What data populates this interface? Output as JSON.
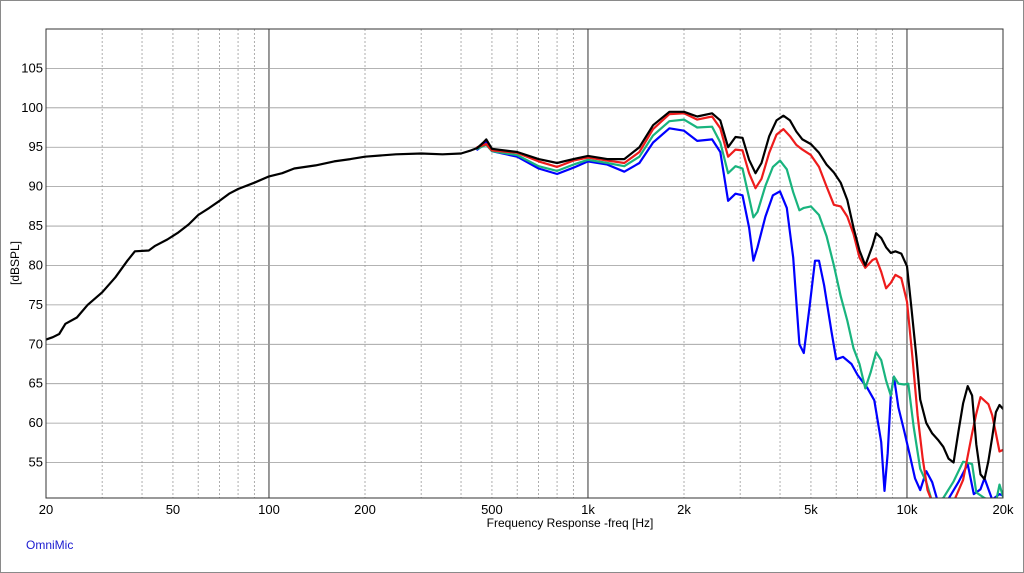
{
  "brand": "OmniMic",
  "chart_data": {
    "type": "line",
    "xlabel": "Frequency Response -freq [Hz]",
    "ylabel": "[dBSPL]",
    "x_scale": "log",
    "xlim": [
      20,
      20000
    ],
    "ylim": [
      50.5,
      110
    ],
    "grid": true,
    "x_ticks": [
      {
        "v": 20,
        "label": "20"
      },
      {
        "v": 50,
        "label": "50"
      },
      {
        "v": 100,
        "label": "100"
      },
      {
        "v": 200,
        "label": "200"
      },
      {
        "v": 500,
        "label": "500"
      },
      {
        "v": 1000,
        "label": "1k"
      },
      {
        "v": 2000,
        "label": "2k"
      },
      {
        "v": 5000,
        "label": "5k"
      },
      {
        "v": 10000,
        "label": "10k"
      },
      {
        "v": 20000,
        "label": "20k"
      }
    ],
    "y_ticks": [
      {
        "v": 55,
        "label": "55"
      },
      {
        "v": 60,
        "label": "60"
      },
      {
        "v": 65,
        "label": "65"
      },
      {
        "v": 70,
        "label": "70"
      },
      {
        "v": 75,
        "label": "75"
      },
      {
        "v": 80,
        "label": "80"
      },
      {
        "v": 85,
        "label": "85"
      },
      {
        "v": 90,
        "label": "90"
      },
      {
        "v": 95,
        "label": "95"
      },
      {
        "v": 100,
        "label": "100"
      },
      {
        "v": 105,
        "label": "105"
      }
    ],
    "series": [
      {
        "color": "#0000ff",
        "points": [
          [
            450,
            94.7
          ],
          [
            480,
            95.6
          ],
          [
            500,
            94.5
          ],
          [
            600,
            93.8
          ],
          [
            700,
            92.3
          ],
          [
            800,
            91.6
          ],
          [
            900,
            92.4
          ],
          [
            1000,
            93.2
          ],
          [
            1150,
            92.8
          ],
          [
            1300,
            91.9
          ],
          [
            1450,
            93.0
          ],
          [
            1600,
            95.6
          ],
          [
            1800,
            97.4
          ],
          [
            2000,
            97.1
          ],
          [
            2200,
            95.8
          ],
          [
            2450,
            96.0
          ],
          [
            2600,
            94.4
          ],
          [
            2750,
            88.2
          ],
          [
            2900,
            89.1
          ],
          [
            3050,
            88.9
          ],
          [
            3200,
            84.8
          ],
          [
            3300,
            80.6
          ],
          [
            3400,
            82.3
          ],
          [
            3600,
            86.2
          ],
          [
            3800,
            88.9
          ],
          [
            4000,
            89.4
          ],
          [
            4200,
            87.3
          ],
          [
            4400,
            81.0
          ],
          [
            4600,
            70.0
          ],
          [
            4750,
            68.9
          ],
          [
            4950,
            74.8
          ],
          [
            5150,
            80.6
          ],
          [
            5300,
            80.6
          ],
          [
            5500,
            77.5
          ],
          [
            5800,
            71.6
          ],
          [
            6000,
            68.1
          ],
          [
            6300,
            68.4
          ],
          [
            6700,
            67.5
          ],
          [
            7000,
            66.1
          ],
          [
            7500,
            64.5
          ],
          [
            7900,
            62.9
          ],
          [
            8300,
            57.6
          ],
          [
            8500,
            51.4
          ],
          [
            8700,
            56.2
          ],
          [
            8900,
            63.5
          ],
          [
            9100,
            65.9
          ],
          [
            9400,
            62.0
          ],
          [
            9800,
            59.0
          ],
          [
            10200,
            56.0
          ],
          [
            10600,
            53.0
          ],
          [
            11000,
            51.5
          ],
          [
            11500,
            53.9
          ],
          [
            12000,
            52.5
          ],
          [
            12500,
            50.0
          ],
          [
            13500,
            50.4
          ],
          [
            14500,
            52.5
          ],
          [
            15500,
            54.8
          ],
          [
            16200,
            51.0
          ],
          [
            17000,
            51.6
          ],
          [
            17500,
            53.0
          ],
          [
            18500,
            50.3
          ],
          [
            19500,
            51.0
          ],
          [
            20000,
            50.8
          ]
        ]
      },
      {
        "color": "#19b47e",
        "points": [
          [
            450,
            94.8
          ],
          [
            480,
            95.3
          ],
          [
            500,
            94.5
          ],
          [
            600,
            94.0
          ],
          [
            700,
            92.6
          ],
          [
            800,
            92.0
          ],
          [
            900,
            92.8
          ],
          [
            1000,
            93.4
          ],
          [
            1150,
            93.0
          ],
          [
            1300,
            92.6
          ],
          [
            1450,
            93.8
          ],
          [
            1600,
            96.5
          ],
          [
            1800,
            98.3
          ],
          [
            2000,
            98.5
          ],
          [
            2200,
            97.5
          ],
          [
            2450,
            97.6
          ],
          [
            2600,
            95.6
          ],
          [
            2750,
            91.7
          ],
          [
            2900,
            92.6
          ],
          [
            3050,
            92.3
          ],
          [
            3200,
            88.6
          ],
          [
            3300,
            86.1
          ],
          [
            3400,
            86.8
          ],
          [
            3600,
            90.1
          ],
          [
            3800,
            92.5
          ],
          [
            4000,
            93.3
          ],
          [
            4200,
            92.2
          ],
          [
            4400,
            89.3
          ],
          [
            4600,
            87.0
          ],
          [
            4750,
            87.3
          ],
          [
            5000,
            87.5
          ],
          [
            5300,
            86.4
          ],
          [
            5600,
            83.7
          ],
          [
            5900,
            80.0
          ],
          [
            6200,
            76.1
          ],
          [
            6500,
            73.0
          ],
          [
            6800,
            69.5
          ],
          [
            7100,
            67.5
          ],
          [
            7400,
            64.4
          ],
          [
            7700,
            66.5
          ],
          [
            8000,
            69.0
          ],
          [
            8300,
            68.0
          ],
          [
            8600,
            65.4
          ],
          [
            8900,
            63.5
          ],
          [
            9100,
            65.9
          ],
          [
            9400,
            65.0
          ],
          [
            9800,
            64.9
          ],
          [
            10100,
            65.0
          ],
          [
            10500,
            59.5
          ],
          [
            11000,
            54.2
          ],
          [
            11500,
            52.5
          ],
          [
            12000,
            50.0
          ],
          [
            13000,
            50.5
          ],
          [
            14000,
            52.6
          ],
          [
            15000,
            55.1
          ],
          [
            16000,
            54.8
          ],
          [
            16500,
            51.2
          ],
          [
            17500,
            50.5
          ],
          [
            19000,
            50.0
          ],
          [
            19500,
            52.2
          ],
          [
            20000,
            50.7
          ]
        ]
      },
      {
        "color": "#ee1c1c",
        "points": [
          [
            450,
            95.0
          ],
          [
            480,
            95.4
          ],
          [
            500,
            94.6
          ],
          [
            600,
            94.3
          ],
          [
            700,
            93.2
          ],
          [
            800,
            92.5
          ],
          [
            900,
            93.3
          ],
          [
            1000,
            93.7
          ],
          [
            1150,
            93.3
          ],
          [
            1300,
            93.0
          ],
          [
            1450,
            94.4
          ],
          [
            1600,
            97.3
          ],
          [
            1800,
            99.2
          ],
          [
            2000,
            99.3
          ],
          [
            2200,
            98.5
          ],
          [
            2450,
            98.9
          ],
          [
            2600,
            97.4
          ],
          [
            2750,
            93.8
          ],
          [
            2900,
            94.7
          ],
          [
            3050,
            94.6
          ],
          [
            3200,
            91.7
          ],
          [
            3350,
            89.8
          ],
          [
            3500,
            91.0
          ],
          [
            3700,
            94.3
          ],
          [
            3900,
            96.6
          ],
          [
            4100,
            97.3
          ],
          [
            4300,
            96.4
          ],
          [
            4500,
            95.3
          ],
          [
            4700,
            94.7
          ],
          [
            5000,
            94.0
          ],
          [
            5300,
            92.5
          ],
          [
            5600,
            90.0
          ],
          [
            5900,
            87.7
          ],
          [
            6200,
            87.5
          ],
          [
            6500,
            86.2
          ],
          [
            6800,
            84.0
          ],
          [
            7100,
            81.0
          ],
          [
            7400,
            79.7
          ],
          [
            7800,
            80.7
          ],
          [
            8000,
            80.9
          ],
          [
            8300,
            79.2
          ],
          [
            8600,
            77.1
          ],
          [
            8900,
            77.8
          ],
          [
            9200,
            78.8
          ],
          [
            9600,
            78.4
          ],
          [
            10000,
            75.4
          ],
          [
            10400,
            68.4
          ],
          [
            10800,
            61.0
          ],
          [
            11200,
            55.5
          ],
          [
            11600,
            51.5
          ],
          [
            12000,
            50.0
          ],
          [
            13000,
            49.8
          ],
          [
            14000,
            50.0
          ],
          [
            15000,
            52.8
          ],
          [
            16000,
            58.7
          ],
          [
            16500,
            61.2
          ],
          [
            17000,
            63.3
          ],
          [
            18000,
            62.4
          ],
          [
            18500,
            61.0
          ],
          [
            19000,
            58.7
          ],
          [
            19500,
            56.4
          ],
          [
            20000,
            56.6
          ]
        ]
      },
      {
        "color": "#000000",
        "points": [
          [
            20,
            70.6
          ],
          [
            21,
            70.9
          ],
          [
            22,
            71.3
          ],
          [
            23,
            72.6
          ],
          [
            25,
            73.4
          ],
          [
            27,
            75.0
          ],
          [
            30,
            76.6
          ],
          [
            33,
            78.5
          ],
          [
            36,
            80.6
          ],
          [
            38,
            81.8
          ],
          [
            42,
            81.9
          ],
          [
            44,
            82.5
          ],
          [
            48,
            83.3
          ],
          [
            52,
            84.2
          ],
          [
            56,
            85.2
          ],
          [
            60,
            86.4
          ],
          [
            65,
            87.3
          ],
          [
            70,
            88.2
          ],
          [
            75,
            89.1
          ],
          [
            80,
            89.7
          ],
          [
            90,
            90.5
          ],
          [
            100,
            91.3
          ],
          [
            110,
            91.7
          ],
          [
            120,
            92.3
          ],
          [
            140,
            92.7
          ],
          [
            160,
            93.2
          ],
          [
            180,
            93.5
          ],
          [
            200,
            93.8
          ],
          [
            250,
            94.1
          ],
          [
            300,
            94.2
          ],
          [
            350,
            94.1
          ],
          [
            400,
            94.2
          ],
          [
            430,
            94.6
          ],
          [
            450,
            94.9
          ],
          [
            470,
            95.6
          ],
          [
            480,
            96.0
          ],
          [
            500,
            94.8
          ],
          [
            600,
            94.4
          ],
          [
            700,
            93.5
          ],
          [
            800,
            93.0
          ],
          [
            900,
            93.5
          ],
          [
            1000,
            93.9
          ],
          [
            1150,
            93.5
          ],
          [
            1300,
            93.5
          ],
          [
            1450,
            95.0
          ],
          [
            1600,
            97.8
          ],
          [
            1800,
            99.5
          ],
          [
            2000,
            99.5
          ],
          [
            2200,
            98.9
          ],
          [
            2450,
            99.3
          ],
          [
            2600,
            98.4
          ],
          [
            2750,
            95.0
          ],
          [
            2900,
            96.3
          ],
          [
            3050,
            96.2
          ],
          [
            3200,
            93.4
          ],
          [
            3350,
            91.7
          ],
          [
            3500,
            93.0
          ],
          [
            3700,
            96.4
          ],
          [
            3900,
            98.4
          ],
          [
            4100,
            99.0
          ],
          [
            4300,
            98.4
          ],
          [
            4500,
            97.0
          ],
          [
            4700,
            96.0
          ],
          [
            5000,
            95.4
          ],
          [
            5300,
            94.3
          ],
          [
            5600,
            92.8
          ],
          [
            5900,
            91.8
          ],
          [
            6200,
            90.5
          ],
          [
            6500,
            88.3
          ],
          [
            6800,
            84.8
          ],
          [
            7100,
            81.9
          ],
          [
            7400,
            80.0
          ],
          [
            7800,
            82.5
          ],
          [
            8000,
            84.1
          ],
          [
            8300,
            83.5
          ],
          [
            8600,
            82.3
          ],
          [
            8900,
            81.6
          ],
          [
            9200,
            81.8
          ],
          [
            9600,
            81.5
          ],
          [
            10000,
            79.9
          ],
          [
            10300,
            75.0
          ],
          [
            10700,
            68.5
          ],
          [
            11000,
            63.0
          ],
          [
            11500,
            60.0
          ],
          [
            12000,
            58.7
          ],
          [
            12500,
            57.9
          ],
          [
            13000,
            57.0
          ],
          [
            13500,
            55.5
          ],
          [
            14000,
            55.0
          ],
          [
            14500,
            58.9
          ],
          [
            15000,
            62.5
          ],
          [
            15500,
            64.7
          ],
          [
            16000,
            63.5
          ],
          [
            16500,
            57.3
          ],
          [
            17000,
            53.5
          ],
          [
            17500,
            52.9
          ],
          [
            18000,
            55.2
          ],
          [
            18500,
            58.2
          ],
          [
            19000,
            61.4
          ],
          [
            19500,
            62.3
          ],
          [
            20000,
            61.8
          ]
        ]
      }
    ]
  }
}
